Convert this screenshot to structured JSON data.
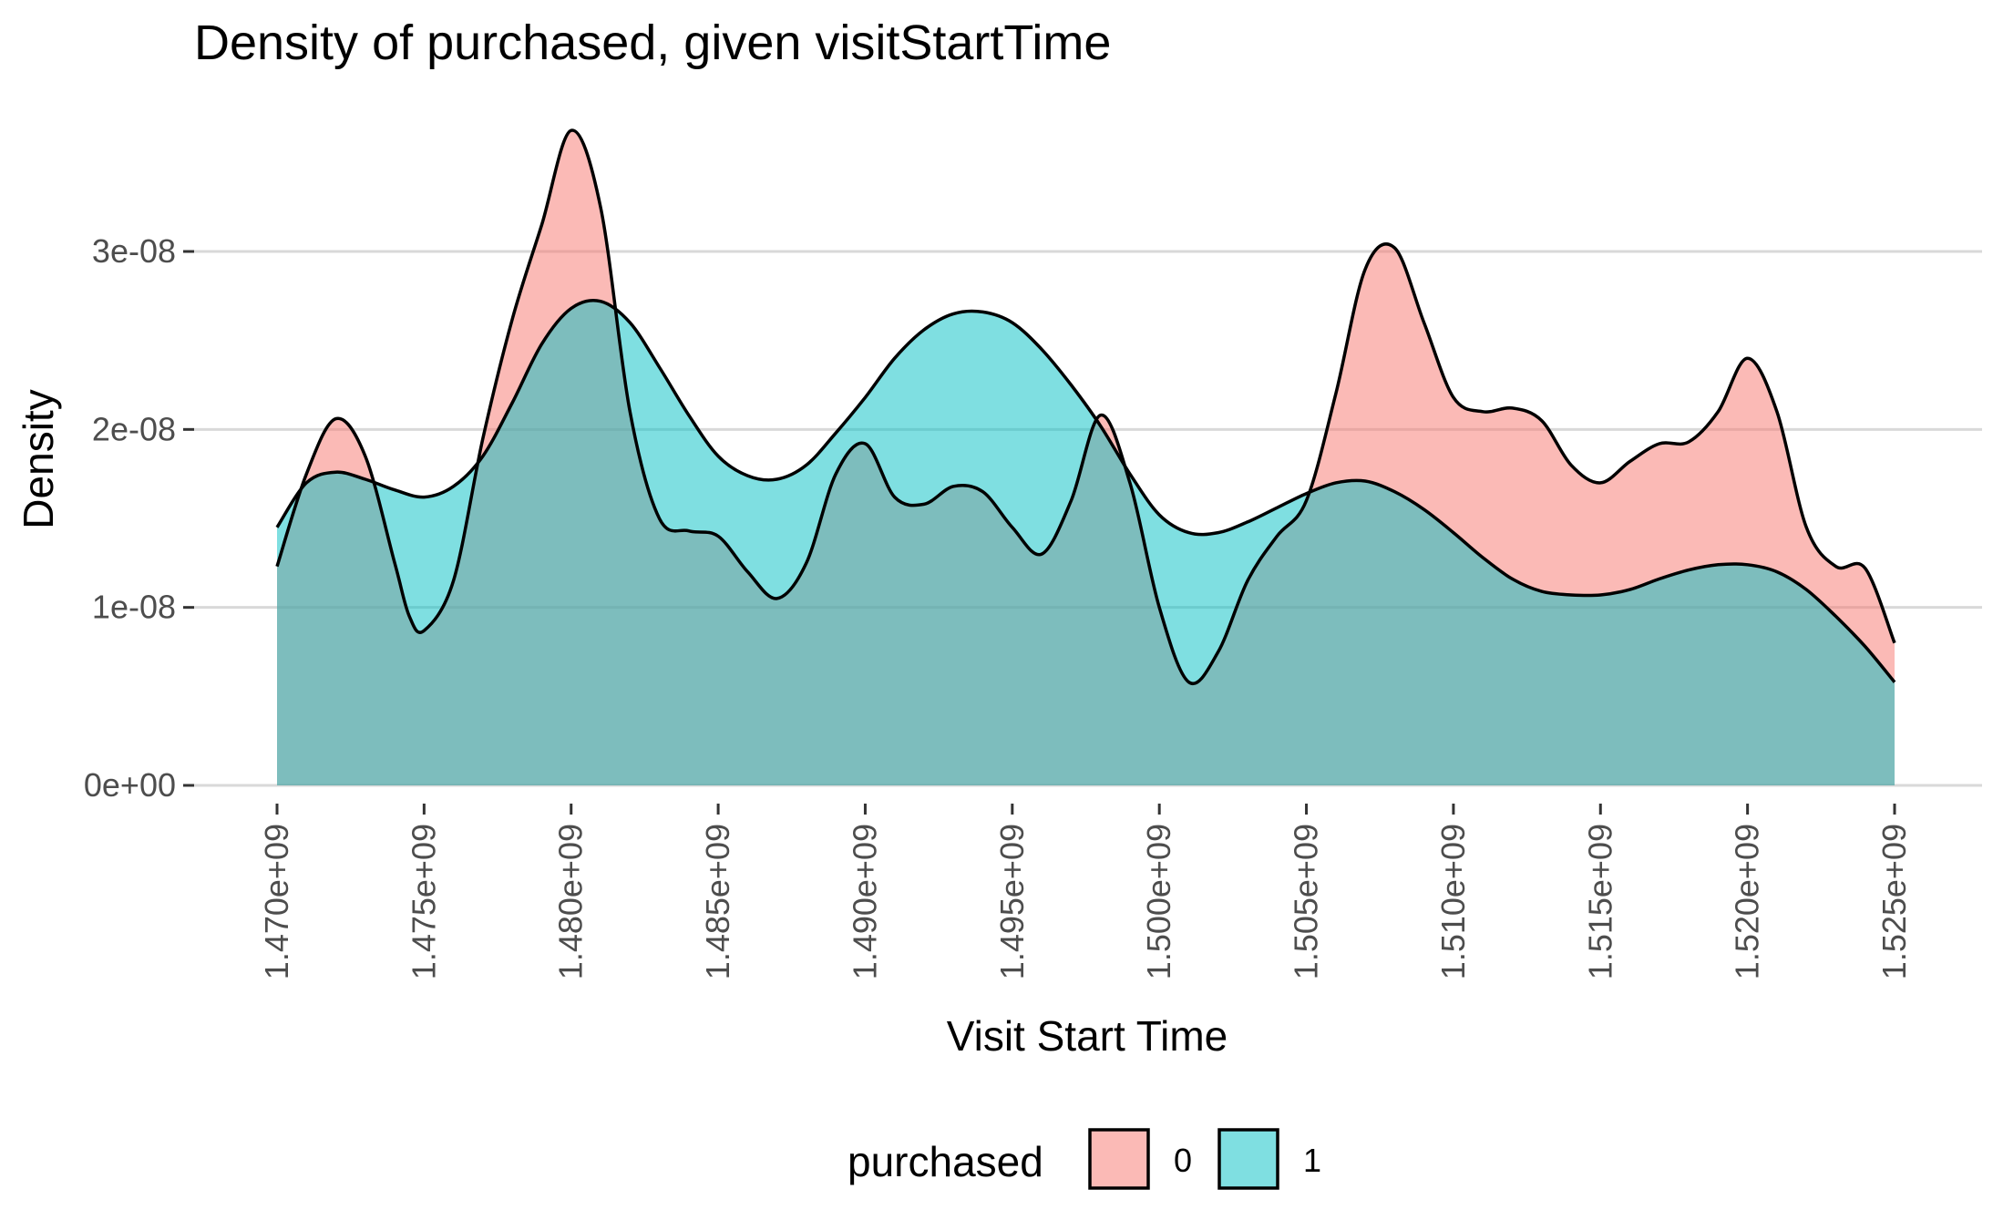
{
  "chart_data": {
    "type": "area",
    "title": "Density of purchased, given visitStartTime",
    "xlabel": "Visit Start Time",
    "ylabel": "Density",
    "xlim": [
      1469500000,
      1525500000
    ],
    "ylim": [
      0,
      3.6e-08
    ],
    "x_ticks": [
      1470000000,
      1475000000,
      1480000000,
      1485000000,
      1490000000,
      1495000000,
      1500000000,
      1505000000,
      1510000000,
      1515000000,
      1520000000,
      1525000000
    ],
    "x_tick_labels": [
      "1.470e+09",
      "1.475e+09",
      "1.480e+09",
      "1.485e+09",
      "1.490e+09",
      "1.495e+09",
      "1.500e+09",
      "1.505e+09",
      "1.510e+09",
      "1.515e+09",
      "1.520e+09",
      "1.525e+09"
    ],
    "y_ticks": [
      0,
      1e-08,
      2e-08,
      3e-08
    ],
    "y_tick_labels": [
      "0e+00",
      "1e-08",
      "2e-08",
      "3e-08"
    ],
    "grid": "horizontal",
    "legend": {
      "title": "purchased",
      "placement": "bottom",
      "entries": [
        "0",
        "1"
      ]
    },
    "series": [
      {
        "name": "0",
        "color": "#F8766D",
        "fill_opacity": 0.5,
        "x": [
          1470000000,
          1471000000,
          1472000000,
          1473000000,
          1474000000,
          1474500000,
          1475000000,
          1476000000,
          1477000000,
          1478000000,
          1479000000,
          1480000000,
          1481000000,
          1482000000,
          1483000000,
          1484000000,
          1485000000,
          1486000000,
          1487000000,
          1488000000,
          1489000000,
          1490000000,
          1491000000,
          1492000000,
          1493000000,
          1494000000,
          1495000000,
          1496000000,
          1497000000,
          1498000000,
          1499000000,
          1500000000,
          1501000000,
          1502000000,
          1503000000,
          1504000000,
          1505000000,
          1506000000,
          1507000000,
          1508000000,
          1509000000,
          1510000000,
          1511000000,
          1512000000,
          1513000000,
          1514000000,
          1515000000,
          1516000000,
          1517000000,
          1518000000,
          1519000000,
          1520000000,
          1521000000,
          1522000000,
          1523000000,
          1524000000,
          1525000000
        ],
        "values": [
          1.23e-08,
          1.75e-08,
          2.06e-08,
          1.85e-08,
          1.25e-08,
          9.5e-09,
          8.7e-09,
          1.15e-08,
          1.95e-08,
          2.62e-08,
          3.15e-08,
          3.68e-08,
          3.25e-08,
          2.1e-08,
          1.5e-08,
          1.43e-08,
          1.4e-08,
          1.2e-08,
          1.05e-08,
          1.25e-08,
          1.75e-08,
          1.92e-08,
          1.62e-08,
          1.58e-08,
          1.68e-08,
          1.65e-08,
          1.45e-08,
          1.3e-08,
          1.6e-08,
          2.08e-08,
          1.7e-08,
          1e-08,
          5.8e-09,
          7.5e-09,
          1.15e-08,
          1.4e-08,
          1.6e-08,
          2.2e-08,
          2.9e-08,
          3.02e-08,
          2.6e-08,
          2.18e-08,
          2.1e-08,
          2.12e-08,
          2.05e-08,
          1.8e-08,
          1.7e-08,
          1.82e-08,
          1.92e-08,
          1.93e-08,
          2.1e-08,
          2.4e-08,
          2.1e-08,
          1.45e-08,
          1.23e-08,
          1.22e-08,
          8e-09
        ]
      },
      {
        "name": "1",
        "color": "#00BFC4",
        "fill_opacity": 0.5,
        "x": [
          1470000000,
          1471000000,
          1472000000,
          1473000000,
          1474000000,
          1475000000,
          1476000000,
          1477000000,
          1478000000,
          1479000000,
          1480000000,
          1481000000,
          1482000000,
          1483000000,
          1484000000,
          1485000000,
          1486000000,
          1487000000,
          1488000000,
          1489000000,
          1490000000,
          1491000000,
          1492000000,
          1493000000,
          1494000000,
          1495000000,
          1496000000,
          1497000000,
          1498000000,
          1499000000,
          1500000000,
          1501000000,
          1502000000,
          1503000000,
          1504000000,
          1505000000,
          1506000000,
          1507000000,
          1508000000,
          1509000000,
          1510000000,
          1511000000,
          1512000000,
          1513000000,
          1514000000,
          1515000000,
          1516000000,
          1517000000,
          1518000000,
          1519000000,
          1520000000,
          1521000000,
          1522000000,
          1523000000,
          1524000000,
          1525000000
        ],
        "values": [
          1.45e-08,
          1.7e-08,
          1.76e-08,
          1.72e-08,
          1.66e-08,
          1.62e-08,
          1.68e-08,
          1.85e-08,
          2.15e-08,
          2.48e-08,
          2.68e-08,
          2.72e-08,
          2.6e-08,
          2.35e-08,
          2.08e-08,
          1.85e-08,
          1.74e-08,
          1.72e-08,
          1.8e-08,
          1.98e-08,
          2.18e-08,
          2.4e-08,
          2.56e-08,
          2.65e-08,
          2.66e-08,
          2.6e-08,
          2.45e-08,
          2.25e-08,
          2.02e-08,
          1.75e-08,
          1.52e-08,
          1.42e-08,
          1.42e-08,
          1.48e-08,
          1.56e-08,
          1.64e-08,
          1.7e-08,
          1.71e-08,
          1.65e-08,
          1.55e-08,
          1.42e-08,
          1.28e-08,
          1.16e-08,
          1.09e-08,
          1.07e-08,
          1.07e-08,
          1.1e-08,
          1.16e-08,
          1.21e-08,
          1.24e-08,
          1.24e-08,
          1.2e-08,
          1.1e-08,
          9.5e-09,
          7.8e-09,
          5.8e-09
        ]
      }
    ]
  }
}
